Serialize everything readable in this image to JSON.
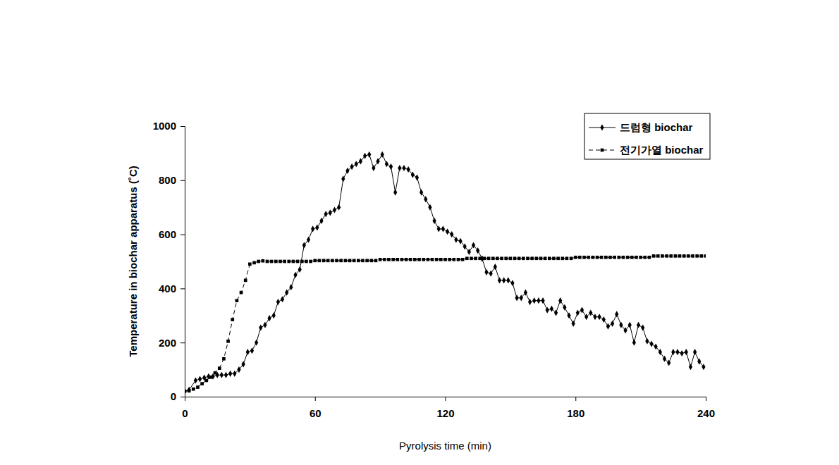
{
  "chart_data": {
    "type": "line",
    "x_label": "Pyrolysis time (min)",
    "y_label": "Temperature in biochar apparatus (˚C)",
    "xlim": [
      0,
      240
    ],
    "ylim": [
      0,
      1000
    ],
    "xticks": [
      0,
      60,
      120,
      180,
      240
    ],
    "yticks": [
      0,
      200,
      400,
      600,
      800,
      1000
    ],
    "grid": false,
    "legend": "upper right",
    "series": [
      {
        "name": "드럼형 biochar",
        "color": "#000000",
        "marker": "diamond",
        "line_style": "solid",
        "x": [
          0,
          2,
          5,
          7,
          9,
          11,
          13,
          15,
          17,
          19,
          21,
          23,
          25,
          27,
          29,
          31,
          33,
          35,
          37,
          39,
          41,
          43,
          45,
          47,
          49,
          51,
          53,
          55,
          57,
          59,
          61,
          63,
          65,
          67,
          69,
          71,
          73,
          75,
          77,
          79,
          81,
          83,
          85,
          87,
          89,
          91,
          93,
          95,
          97,
          99,
          101,
          103,
          105,
          107,
          109,
          111,
          113,
          115,
          117,
          119,
          121,
          123,
          125,
          127,
          129,
          131,
          133,
          135,
          137,
          139,
          141,
          143,
          145,
          147,
          149,
          151,
          153,
          155,
          157,
          159,
          161,
          163,
          165,
          167,
          169,
          171,
          173,
          175,
          177,
          179,
          181,
          183,
          185,
          187,
          189,
          191,
          193,
          195,
          197,
          199,
          201,
          203,
          205,
          207,
          209,
          211,
          213,
          215,
          217,
          219,
          221,
          223,
          225,
          227,
          229,
          231,
          233,
          235,
          237,
          239
        ],
        "values": [
          20,
          25,
          60,
          65,
          70,
          75,
          75,
          80,
          80,
          80,
          85,
          85,
          100,
          120,
          165,
          170,
          200,
          255,
          265,
          290,
          300,
          350,
          360,
          385,
          405,
          450,
          470,
          560,
          580,
          620,
          625,
          650,
          675,
          680,
          690,
          700,
          805,
          835,
          850,
          860,
          870,
          890,
          895,
          845,
          870,
          895,
          860,
          850,
          755,
          845,
          845,
          840,
          820,
          810,
          755,
          730,
          700,
          650,
          620,
          620,
          610,
          600,
          580,
          575,
          555,
          535,
          560,
          540,
          510,
          460,
          455,
          480,
          430,
          430,
          430,
          420,
          365,
          365,
          385,
          350,
          355,
          355,
          355,
          320,
          325,
          310,
          355,
          330,
          300,
          270,
          310,
          320,
          295,
          310,
          295,
          295,
          285,
          260,
          270,
          305,
          265,
          245,
          265,
          200,
          265,
          255,
          205,
          195,
          185,
          165,
          140,
          125,
          165,
          165,
          160,
          165,
          110,
          165,
          130,
          110
        ]
      },
      {
        "name": "전기가열 biochar",
        "color": "#000000",
        "marker": "square",
        "line_style": "dashed",
        "x": [
          0,
          2,
          4,
          6,
          8,
          10,
          12,
          14,
          16,
          18,
          20,
          22,
          24,
          26,
          28,
          30,
          32,
          34,
          36,
          38,
          40,
          42,
          44,
          46,
          48,
          50,
          52,
          54,
          56,
          58,
          60,
          62,
          64,
          66,
          68,
          70,
          72,
          74,
          76,
          78,
          80,
          82,
          84,
          86,
          88,
          90,
          92,
          94,
          96,
          98,
          100,
          102,
          104,
          106,
          108,
          110,
          112,
          114,
          116,
          118,
          120,
          122,
          124,
          126,
          128,
          130,
          132,
          134,
          136,
          138,
          140,
          142,
          144,
          146,
          148,
          150,
          152,
          154,
          156,
          158,
          160,
          162,
          164,
          166,
          168,
          170,
          172,
          174,
          176,
          178,
          180,
          182,
          184,
          186,
          188,
          190,
          192,
          194,
          196,
          198,
          200,
          202,
          204,
          206,
          208,
          210,
          212,
          214,
          216,
          218,
          220,
          222,
          224,
          226,
          228,
          230,
          232,
          234,
          236,
          238,
          240
        ],
        "values": [
          20,
          22,
          28,
          35,
          48,
          60,
          72,
          88,
          105,
          140,
          205,
          285,
          355,
          385,
          430,
          490,
          495,
          500,
          502,
          500,
          500,
          500,
          500,
          500,
          500,
          500,
          500,
          500,
          500,
          500,
          503,
          503,
          503,
          503,
          503,
          503,
          503,
          503,
          503,
          503,
          503,
          503,
          503,
          503,
          503,
          507,
          507,
          507,
          507,
          507,
          507,
          507,
          507,
          507,
          507,
          507,
          507,
          507,
          507,
          507,
          507,
          507,
          507,
          507,
          507,
          511,
          511,
          511,
          511,
          511,
          511,
          511,
          511,
          511,
          511,
          511,
          511,
          511,
          511,
          511,
          511,
          511,
          511,
          511,
          511,
          511,
          511,
          511,
          511,
          511,
          515,
          515,
          515,
          515,
          515,
          515,
          515,
          515,
          515,
          515,
          515,
          515,
          515,
          515,
          515,
          515,
          515,
          515,
          520,
          520,
          520,
          520,
          520,
          520,
          520,
          520,
          520,
          520,
          520,
          520,
          520
        ]
      }
    ]
  }
}
